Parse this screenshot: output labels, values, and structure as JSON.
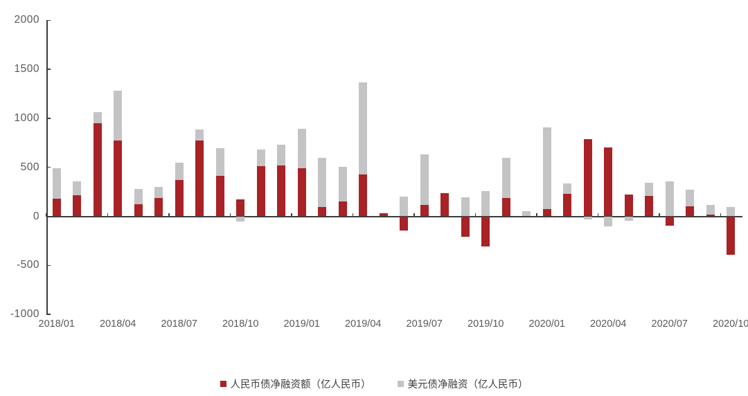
{
  "chart_data": {
    "type": "bar",
    "stacked": true,
    "title": "",
    "xlabel": "",
    "ylabel": "",
    "ylim": [
      -1000,
      2000
    ],
    "ytick_step": 500,
    "grid": false,
    "legend_position": "bottom",
    "categories": [
      "2018/01",
      "2018/02",
      "2018/03",
      "2018/04",
      "2018/05",
      "2018/06",
      "2018/07",
      "2018/08",
      "2018/09",
      "2018/10",
      "2018/11",
      "2018/12",
      "2019/01",
      "2019/02",
      "2019/03",
      "2019/04",
      "2019/05",
      "2019/06",
      "2019/07",
      "2019/08",
      "2019/09",
      "2019/10",
      "2019/11",
      "2019/12",
      "2020/01",
      "2020/02",
      "2020/03",
      "2020/04",
      "2020/05",
      "2020/06",
      "2020/07",
      "2020/08",
      "2020/09",
      "2020/10"
    ],
    "x_tick_labels": [
      "2018/01",
      "2018/04",
      "2018/07",
      "2018/10",
      "2019/01",
      "2019/04",
      "2019/07",
      "2019/10",
      "2020/01",
      "2020/04",
      "2020/07",
      "2020/10"
    ],
    "y_tick_labels": [
      "-1000",
      "-500",
      "0",
      "500",
      "1000",
      "1500",
      "2000"
    ],
    "series": [
      {
        "name": "人民币债净融资额（亿人民币）",
        "color": "#a82226",
        "values": [
          180,
          215,
          950,
          775,
          125,
          190,
          370,
          775,
          410,
          175,
          510,
          520,
          490,
          95,
          150,
          430,
          30,
          -145,
          115,
          235,
          -205,
          -310,
          185,
          0,
          75,
          230,
          785,
          705,
          220,
          210,
          -95,
          100,
          20,
          -395
        ]
      },
      {
        "name": "美元债净融资（亿人民币）",
        "color": "#c4c4c6",
        "values": [
          310,
          145,
          110,
          510,
          155,
          110,
          175,
          110,
          285,
          -55,
          170,
          210,
          400,
          505,
          355,
          940,
          0,
          200,
          515,
          0,
          195,
          255,
          415,
          55,
          835,
          105,
          -35,
          -100,
          -45,
          135,
          355,
          170,
          100,
          95
        ]
      }
    ],
    "colors": {
      "axis": "#3c3c3c",
      "tick_label": "#595959",
      "legend_text": "#404040",
      "background": "#ffffff"
    }
  }
}
